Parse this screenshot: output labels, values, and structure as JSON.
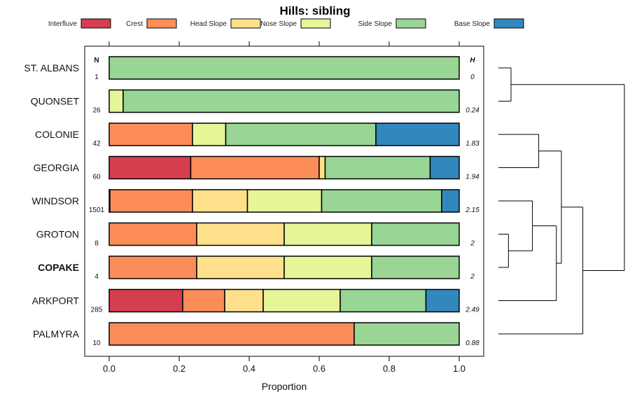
{
  "chart_data": {
    "type": "bar",
    "orientation": "horizontal-stacked",
    "title": "Hills: sibling",
    "xlabel": "Proportion",
    "xlim": [
      0,
      1
    ],
    "x_ticks": [
      "0.0",
      "0.2",
      "0.4",
      "0.6",
      "0.8",
      "1.0"
    ],
    "left_column_header": "N",
    "right_column_header": "H",
    "legend": [
      {
        "name": "Interfluve",
        "color": "#d53e4f"
      },
      {
        "name": "Crest",
        "color": "#fc8d59"
      },
      {
        "name": "Head Slope",
        "color": "#fee08b"
      },
      {
        "name": "Nose Slope",
        "color": "#e6f598"
      },
      {
        "name": "Side Slope",
        "color": "#99d594"
      },
      {
        "name": "Base Slope",
        "color": "#3288bd"
      }
    ],
    "rows": [
      {
        "label": "ST. ALBANS",
        "bold": false,
        "n": "1",
        "h": "0",
        "values": [
          0,
          0,
          0,
          0,
          1.0,
          0
        ]
      },
      {
        "label": "QUONSET",
        "bold": false,
        "n": "26",
        "h": "0.24",
        "values": [
          0,
          0,
          0,
          0.04,
          0.96,
          0
        ]
      },
      {
        "label": "COLONIE",
        "bold": false,
        "n": "42",
        "h": "1.83",
        "values": [
          0,
          0.238,
          0,
          0.095,
          0.429,
          0.238
        ]
      },
      {
        "label": "GEORGIA",
        "bold": false,
        "n": "60",
        "h": "1.94",
        "values": [
          0.233,
          0.367,
          0.017,
          0,
          0.3,
          0.083
        ]
      },
      {
        "label": "WINDSOR",
        "bold": false,
        "n": "1501",
        "h": "2.15",
        "values": [
          0.002,
          0.236,
          0.157,
          0.212,
          0.343,
          0.05
        ]
      },
      {
        "label": "GROTON",
        "bold": false,
        "n": "8",
        "h": "2",
        "values": [
          0,
          0.25,
          0.25,
          0.25,
          0.25,
          0
        ]
      },
      {
        "label": "COPAKE",
        "bold": true,
        "n": "4",
        "h": "2",
        "values": [
          0,
          0.25,
          0.25,
          0.25,
          0.25,
          0
        ]
      },
      {
        "label": "ARKPORT",
        "bold": false,
        "n": "285",
        "h": "2.49",
        "values": [
          0.21,
          0.12,
          0.11,
          0.22,
          0.245,
          0.095
        ]
      },
      {
        "label": "PALMYRA",
        "bold": false,
        "n": "10",
        "h": "0.88",
        "values": [
          0,
          0.7,
          0,
          0,
          0.3,
          0
        ]
      }
    ],
    "dendrogram": {
      "leaf_order": [
        "ST. ALBANS",
        "QUONSET",
        "COLONIE",
        "GEORGIA",
        "WINDSOR",
        "GROTON",
        "COPAKE",
        "ARKPORT",
        "PALMYRA"
      ],
      "merges": [
        {
          "left": "ST. ALBANS",
          "right": "QUONSET",
          "height": 0.1
        },
        {
          "left": "COLONIE",
          "right": "GEORGIA",
          "height": 0.32
        },
        {
          "left": "GROTON",
          "right": "COPAKE",
          "height": 0.08
        },
        {
          "left": "WINDSOR",
          "right": "GROTON+COPAKE",
          "height": 0.27
        },
        {
          "left": "WINDSOR+GROTON+COPAKE",
          "right": "ARKPORT",
          "height": 0.46
        },
        {
          "left": "COLONIE+GEORGIA",
          "right": "WINDSOR+GROTON+COPAKE+ARKPORT",
          "height": 0.5
        },
        {
          "left": "COLONIE..ARKPORT",
          "right": "PALMYRA",
          "height": 0.67
        },
        {
          "left": "ST. ALBANS+QUONSET",
          "right": "COLONIE..PALMYRA",
          "height": 1.0
        }
      ]
    }
  }
}
